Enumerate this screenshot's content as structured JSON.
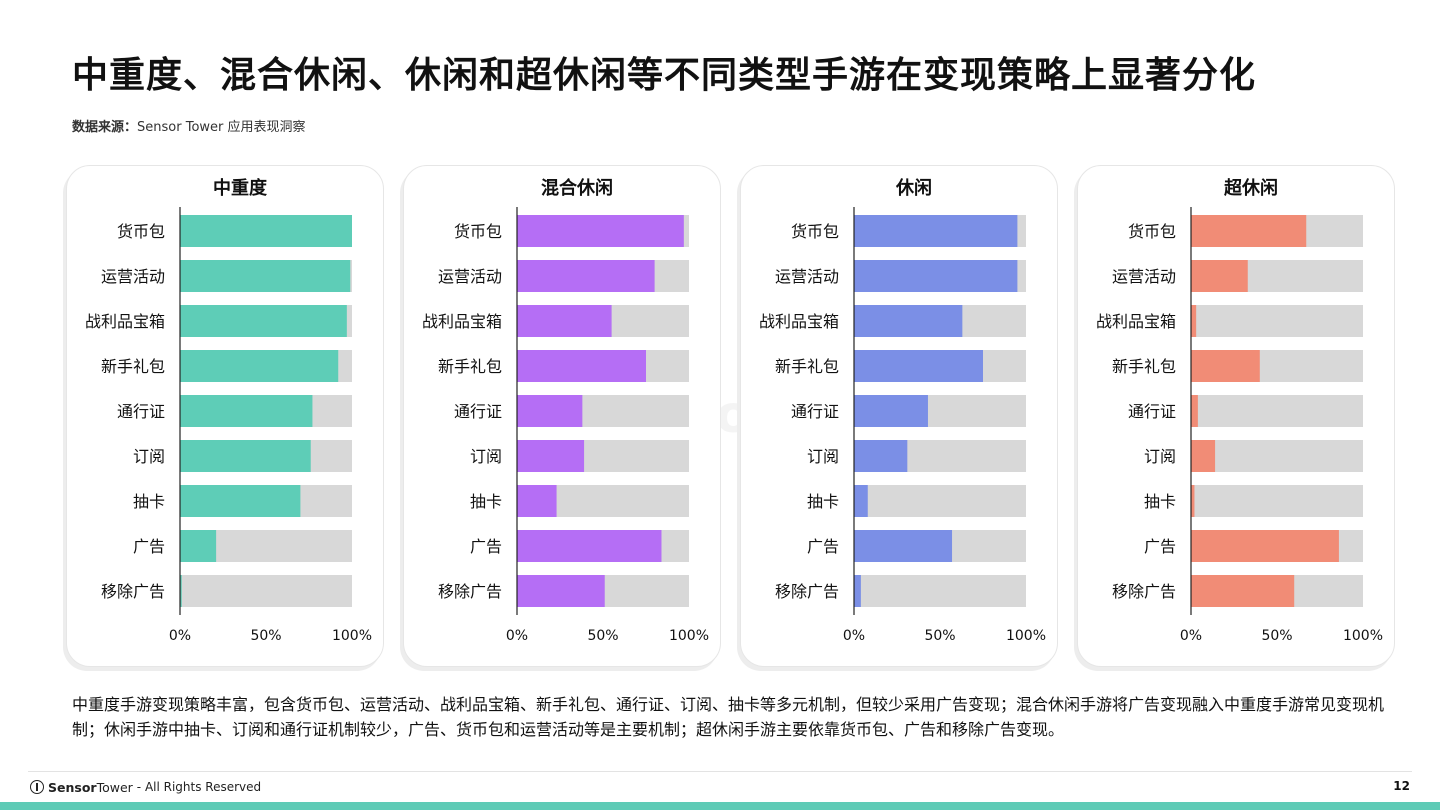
{
  "title": "中重度、混合休闲、休闲和超休闲等不同类型手游在变现策略上显著分化",
  "source": {
    "label": "数据来源：",
    "text": "Sensor Tower 应用表现洞察"
  },
  "summary": "中重度手游变现策略丰富，包含货币包、运营活动、战利品宝箱、新手礼包、通行证、订阅、抽卡等多元机制，但较少采用广告变现；混合休闲手游将广告变现融入中重度手游常见变现机制；休闲手游中抽卡、订阅和通行证机制较少，广告、货币包和运营活动等是主要机制；超休闲手游主要依靠货币包、广告和移除广告变现。",
  "footer": {
    "brand": "Sensor",
    "brand_light": "Tower",
    "rights": "- All Rights Reserved",
    "page": "12"
  },
  "colors": {
    "mid_core": "#5ecdb7",
    "hybrid_casual": "#b56ef5",
    "casual": "#7b8fe6",
    "hyper_casual": "#f18c76",
    "track": "#d8d8d8"
  },
  "chart_data": [
    {
      "type": "bar",
      "orientation": "horizontal",
      "stacked": true,
      "title": "中重度",
      "categories": [
        "货币包",
        "运营活动",
        "战利品宝箱",
        "新手礼包",
        "通行证",
        "订阅",
        "抽卡",
        "广告",
        "移除广告"
      ],
      "values": [
        100,
        99,
        97,
        92,
        77,
        76,
        70,
        21,
        1
      ],
      "xlim": [
        0,
        100
      ],
      "ticks": [
        "0%",
        "50%",
        "100%"
      ],
      "color": "#5ecdb7"
    },
    {
      "type": "bar",
      "orientation": "horizontal",
      "stacked": true,
      "title": "混合休闲",
      "categories": [
        "货币包",
        "运营活动",
        "战利品宝箱",
        "新手礼包",
        "通行证",
        "订阅",
        "抽卡",
        "广告",
        "移除广告"
      ],
      "values": [
        97,
        80,
        55,
        75,
        38,
        39,
        23,
        84,
        51
      ],
      "xlim": [
        0,
        100
      ],
      "ticks": [
        "0%",
        "50%",
        "100%"
      ],
      "color": "#b56ef5"
    },
    {
      "type": "bar",
      "orientation": "horizontal",
      "stacked": true,
      "title": "休闲",
      "categories": [
        "货币包",
        "运营活动",
        "战利品宝箱",
        "新手礼包",
        "通行证",
        "订阅",
        "抽卡",
        "广告",
        "移除广告"
      ],
      "values": [
        95,
        95,
        63,
        75,
        43,
        31,
        8,
        57,
        4
      ],
      "xlim": [
        0,
        100
      ],
      "ticks": [
        "0%",
        "50%",
        "100%"
      ],
      "color": "#7b8fe6"
    },
    {
      "type": "bar",
      "orientation": "horizontal",
      "stacked": true,
      "title": "超休闲",
      "categories": [
        "货币包",
        "运营活动",
        "战利品宝箱",
        "新手礼包",
        "通行证",
        "订阅",
        "抽卡",
        "广告",
        "移除广告"
      ],
      "values": [
        67,
        33,
        3,
        40,
        4,
        14,
        2,
        86,
        60
      ],
      "xlim": [
        0,
        100
      ],
      "ticks": [
        "0%",
        "50%",
        "100%"
      ],
      "color": "#f18c76"
    }
  ]
}
